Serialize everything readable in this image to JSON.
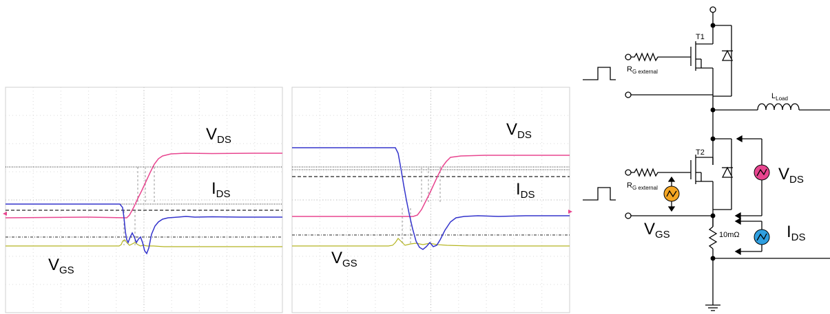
{
  "scopes": [
    {
      "labels": {
        "vds_main": "V",
        "vds_sub": "DS",
        "ids_main": "I",
        "ids_sub": "DS",
        "vgs_main": "V",
        "vgs_sub": "GS"
      },
      "colors": {
        "vds": "#e8458f",
        "ids": "#3333cc",
        "vgs": "#b5b520",
        "grid": "#d8d8d8",
        "marker": "#e8458f"
      }
    },
    {
      "labels": {
        "vds_main": "V",
        "vds_sub": "DS",
        "ids_main": "I",
        "ids_sub": "DS",
        "vgs_main": "V",
        "vgs_sub": "GS"
      },
      "colors": {
        "vds": "#e8458f",
        "ids": "#3333cc",
        "vgs": "#b5b520",
        "grid": "#d8d8d8",
        "marker": "#e8458f"
      }
    }
  ],
  "schematic": {
    "t1": "T1",
    "t2": "T2",
    "rg_top_main": "R",
    "rg_top_sub": "G external",
    "rg_bot_main": "R",
    "rg_bot_sub": "G external",
    "load_main": "L",
    "load_sub": "Load",
    "vds_main": "V",
    "vds_sub": "DS",
    "ids_main": "I",
    "ids_sub": "DS",
    "vgs_main": "V",
    "vgs_sub": "GS",
    "shunt": "10mΩ",
    "colors": {
      "vgs_probe": "#f5a623",
      "vds_probe": "#e8458f",
      "ids_probe": "#2f9fe0"
    }
  }
}
